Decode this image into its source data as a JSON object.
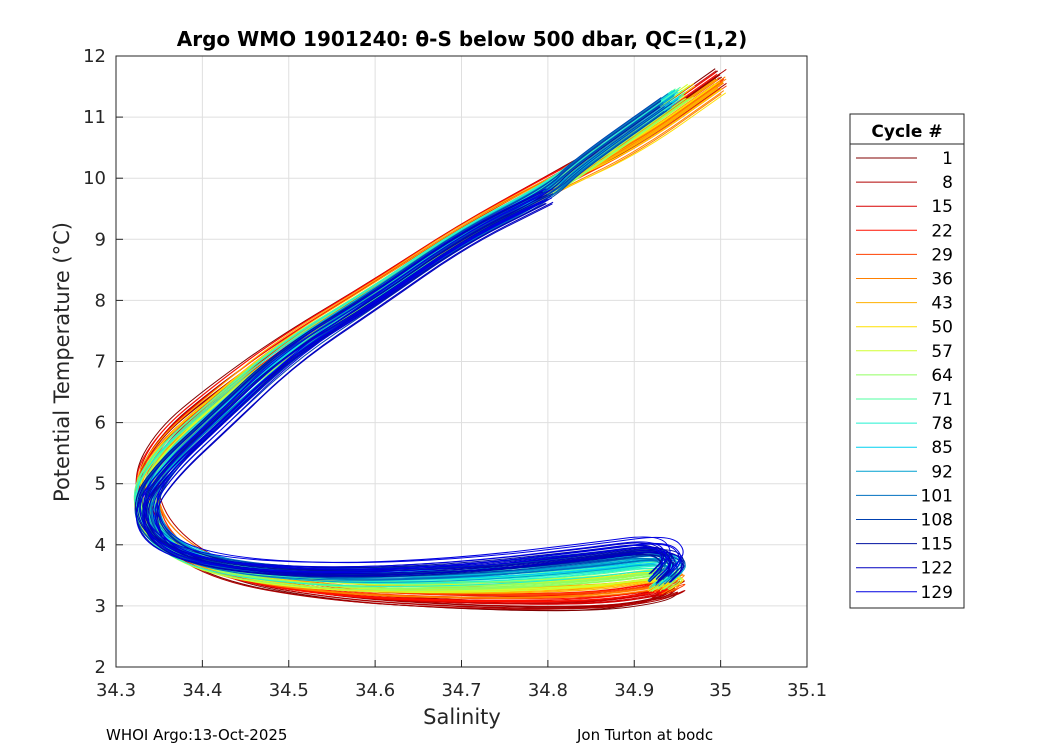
{
  "chart_data": {
    "type": "line",
    "title": "Argo WMO 1901240: θ-S below 500 dbar,  QC=(1,2)",
    "xlabel": "Salinity",
    "ylabel": "Potential Temperature (°C)",
    "xlim": [
      34.3,
      35.1
    ],
    "ylim": [
      2,
      12
    ],
    "xticks": [
      34.3,
      34.4,
      34.5,
      34.6,
      34.7,
      34.8,
      34.9,
      35.0,
      35.1
    ],
    "xtick_labels": [
      "34.3",
      "34.4",
      "34.5",
      "34.6",
      "34.7",
      "34.8",
      "34.9",
      "35",
      "35.1"
    ],
    "yticks": [
      2,
      3,
      4,
      5,
      6,
      7,
      8,
      9,
      10,
      11,
      12
    ],
    "ytick_labels": [
      "2",
      "3",
      "4",
      "5",
      "6",
      "7",
      "8",
      "9",
      "10",
      "11",
      "12"
    ],
    "grid": true,
    "colormap": "jet (reversed: early cycles red, late cycles blue)",
    "legend": {
      "title": "Cycle #",
      "placement": "right, outside plot",
      "entries": [
        {
          "label": "1",
          "color": "#800000"
        },
        {
          "label": "8",
          "color": "#b00000"
        },
        {
          "label": "15",
          "color": "#d80000"
        },
        {
          "label": "22",
          "color": "#ff1000"
        },
        {
          "label": "29",
          "color": "#ff4000"
        },
        {
          "label": "36",
          "color": "#ff8000"
        },
        {
          "label": "43",
          "color": "#ffb000"
        },
        {
          "label": "50",
          "color": "#ffe000"
        },
        {
          "label": "57",
          "color": "#d0ff30"
        },
        {
          "label": "64",
          "color": "#90ff60"
        },
        {
          "label": "71",
          "color": "#50ffa0"
        },
        {
          "label": "78",
          "color": "#20f0d0"
        },
        {
          "label": "85",
          "color": "#00d0f0"
        },
        {
          "label": "92",
          "color": "#00a0d0"
        },
        {
          "label": "101",
          "color": "#0070c0"
        },
        {
          "label": "108",
          "color": "#0040b0"
        },
        {
          "label": "115",
          "color": "#0010a0"
        },
        {
          "label": "122",
          "color": "#0000c0"
        },
        {
          "label": "129",
          "color": "#0000e0"
        }
      ]
    },
    "series_envelope": {
      "note": "Approximate median θ-S curve per legend cycle, read from plot",
      "salinity": [
        35.0,
        34.9,
        34.8,
        34.7,
        34.6,
        34.5,
        34.42,
        34.36,
        34.33,
        34.35,
        34.42,
        34.55,
        34.7,
        34.85,
        34.93,
        34.95,
        34.93
      ],
      "theta_red": [
        11.7,
        10.7,
        9.9,
        9.1,
        8.2,
        7.3,
        6.5,
        5.8,
        5.0,
        4.2,
        3.5,
        3.15,
        3.0,
        2.95,
        3.1,
        3.3,
        3.2
      ],
      "theta_blue": [
        null,
        null,
        9.7,
        9.0,
        8.0,
        7.1,
        6.0,
        5.2,
        4.6,
        4.0,
        3.7,
        3.6,
        3.7,
        3.95,
        4.1,
        3.8,
        3.5
      ]
    }
  },
  "footer": {
    "left": "WHOI Argo:13-Oct-2025",
    "right": "Jon Turton at bodc"
  }
}
